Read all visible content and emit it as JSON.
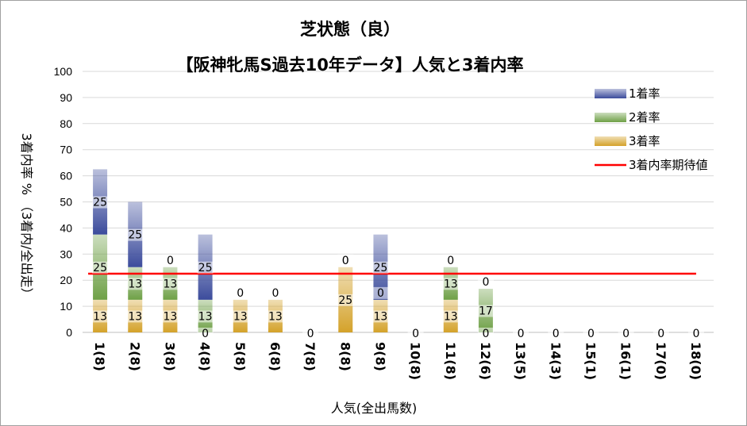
{
  "chart_data": {
    "type": "bar",
    "title": "芝状態（良）",
    "subtitle": "【阪神牝馬S過去10年データ】人気と3着内率",
    "xlabel": "人気(全出馬数)",
    "ylabel": "3着内率 %  （3着内/全出走）",
    "ylim": [
      0,
      100
    ],
    "yticks": [
      "0",
      "10",
      "20",
      "30",
      "40",
      "50",
      "60",
      "70",
      "80",
      "90",
      "100"
    ],
    "categories": [
      "1(8)",
      "2(8)",
      "3(8)",
      "4(8)",
      "5(8)",
      "6(8)",
      "7(8)",
      "8(8)",
      "9(8)",
      "10(8)",
      "11(8)",
      "12(6)",
      "13(5)",
      "14(3)",
      "15(1)",
      "16(1)",
      "17(0)",
      "18(0)"
    ],
    "series": [
      {
        "name": "3着率",
        "color": "#d4a22a",
        "values": [
          12.5,
          12.5,
          12.5,
          0,
          12.5,
          12.5,
          0,
          25,
          12.5,
          0,
          12.5,
          0,
          0,
          0,
          0,
          0,
          0,
          0
        ],
        "labels": [
          "13",
          "13",
          "13",
          "0",
          "13",
          "13",
          "0",
          "25",
          "13",
          "0",
          "13",
          "0",
          "0",
          "0",
          "0",
          "0",
          "0",
          "0"
        ]
      },
      {
        "name": "2着率",
        "color": "#6ea046",
        "values": [
          25,
          12.5,
          12.5,
          12.5,
          0,
          0,
          0,
          0,
          0,
          0,
          12.5,
          16.7,
          0,
          0,
          0,
          0,
          0,
          0
        ],
        "labels": [
          "25",
          "13",
          "13",
          "13",
          "0",
          "0",
          "",
          "0",
          "0",
          "",
          "13",
          "17",
          "",
          "",
          "",
          "",
          "",
          ""
        ]
      },
      {
        "name": "1着率",
        "color": "#3c4c9c",
        "values": [
          25,
          25,
          0,
          25,
          0,
          0,
          0,
          0,
          25,
          0,
          0,
          0,
          0,
          0,
          0,
          0,
          0,
          0
        ],
        "labels": [
          "25",
          "25",
          "0",
          "25",
          "",
          "",
          "",
          "0",
          "25",
          "",
          "0",
          "0",
          "",
          "",
          "",
          "",
          "",
          ""
        ]
      }
    ],
    "reference_line": {
      "name": "3着内率期待値",
      "value": 22.5,
      "color": "#ff0000"
    },
    "legend": {
      "placement": "top-right",
      "entries": [
        {
          "name": "1着率",
          "color": "#3c4c9c"
        },
        {
          "name": "2着率",
          "color": "#6ea046"
        },
        {
          "name": "3着率",
          "color": "#d4a22a"
        },
        {
          "name": "3着内率期待値",
          "color": "#ff0000"
        }
      ]
    },
    "grid": true
  }
}
